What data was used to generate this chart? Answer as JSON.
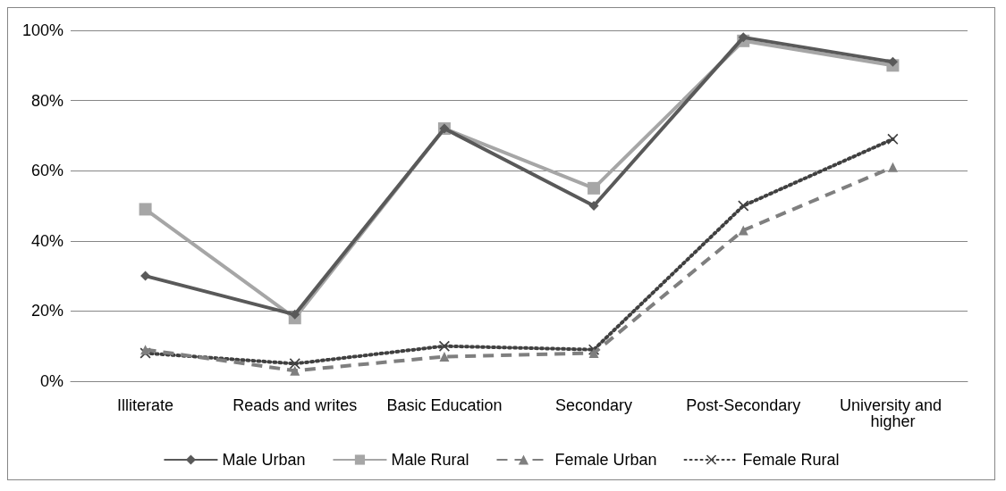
{
  "chart_data": {
    "type": "line",
    "categories": [
      "Illiterate",
      "Reads and writes",
      "Basic Education",
      "Secondary",
      "Post-Secondary",
      "University and higher"
    ],
    "series": [
      {
        "name": "Male Urban",
        "color": "#595959",
        "marker": "diamond",
        "line_style": "solid",
        "values": [
          30,
          19,
          72,
          50,
          98,
          91
        ]
      },
      {
        "name": "Male Rural",
        "color": "#a6a6a6",
        "marker": "square",
        "line_style": "solid",
        "values": [
          49,
          18,
          72,
          55,
          97,
          90
        ]
      },
      {
        "name": "Female Urban",
        "color": "#7f7f7f",
        "marker": "triangle",
        "line_style": "dashed",
        "values": [
          9,
          3,
          7,
          8,
          43,
          61
        ]
      },
      {
        "name": "Female Rural",
        "color": "#404040",
        "marker": "cross",
        "line_style": "dotted",
        "values": [
          8,
          5,
          10,
          9,
          50,
          69
        ]
      }
    ],
    "ylim": [
      0,
      100
    ],
    "yticks": [
      {
        "value": 0,
        "label": "0%"
      },
      {
        "value": 20,
        "label": "20%"
      },
      {
        "value": 40,
        "label": "40%"
      },
      {
        "value": 60,
        "label": "60%"
      },
      {
        "value": 80,
        "label": "80%"
      },
      {
        "value": 100,
        "label": "100%"
      }
    ],
    "grid": "y",
    "legend": "bottom"
  }
}
